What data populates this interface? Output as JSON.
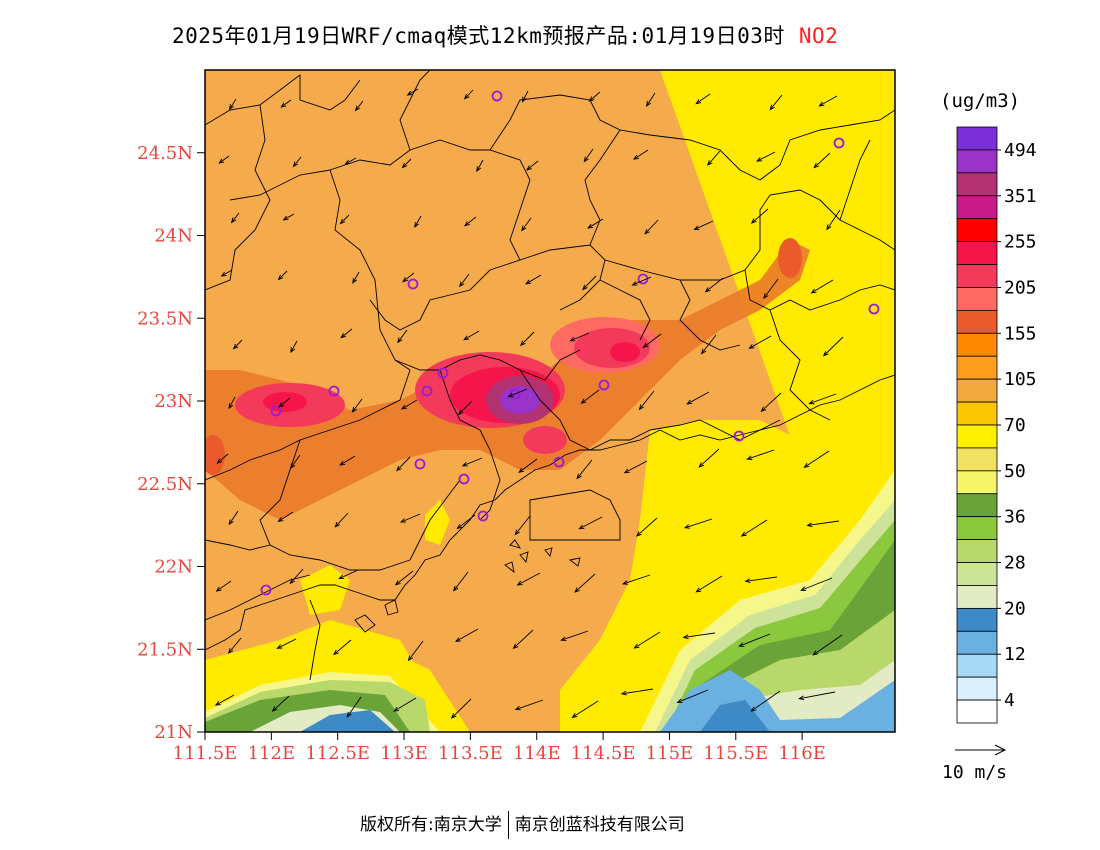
{
  "title": {
    "text": "2025年01月19日WRF/cmaq模式12km预报产品:01月19日03时",
    "species": "NO2"
  },
  "units": "(ug/m3)",
  "axes": {
    "lat_ticks": [
      "24.5N",
      "24N",
      "23.5N",
      "23N",
      "22.5N",
      "22N",
      "21.5N",
      "21N"
    ],
    "lon_ticks": [
      "111.5E",
      "112E",
      "112.5E",
      "113E",
      "113.5E",
      "114E",
      "114.5E",
      "115E",
      "115.5E",
      "116E"
    ],
    "lat_range": [
      21,
      25
    ],
    "lon_range": [
      111.5,
      116.7
    ]
  },
  "colorbar": {
    "labels": [
      "494",
      "351",
      "255",
      "205",
      "155",
      "105",
      "70",
      "50",
      "36",
      "28",
      "20",
      "12",
      "4"
    ],
    "colors": [
      "#7b2fd6",
      "#9a34c9",
      "#b23272",
      "#c91a8a",
      "#ff0000",
      "#f5154b",
      "#f33a5b",
      "#ff6a63",
      "#ea5a2a",
      "#ff8a00",
      "#ff9f1c",
      "#f4a93e",
      "#f9c600",
      "#fff000",
      "#f2e264",
      "#f4f56a",
      "#6aa337",
      "#8cc83e",
      "#b8d86c",
      "#cde39a",
      "#e2ebc3",
      "#3e8ac6",
      "#6ab0e0",
      "#a6daf4",
      "#d9effb",
      "#ffffff"
    ]
  },
  "reference_vector": {
    "label": "10 m/s"
  },
  "map_colors": {
    "base_orange": "#f5ab4c",
    "yellow": "#ffea00",
    "light_yellow": "#f6f78a",
    "green_dark": "#6aa337",
    "green_mid": "#8cc83e",
    "green_light": "#b8d86c",
    "blue": "#3e8ac6",
    "light_blue": "#6ab0e0",
    "hotspot_red": "#f5154b",
    "hotspot_purple": "#9a34c9"
  },
  "footer": {
    "left": "版权所有:南京大学",
    "right": "南京创蓝科技有限公司"
  }
}
